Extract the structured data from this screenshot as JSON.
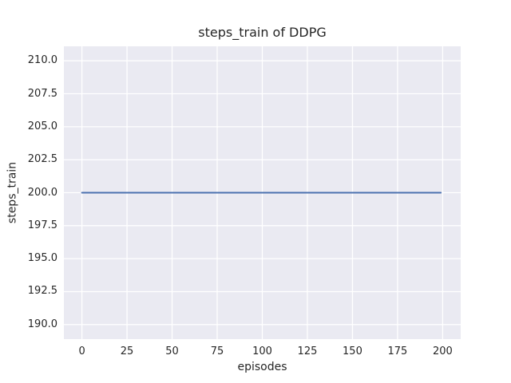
{
  "chart_data": {
    "type": "line",
    "title": "steps_train of DDPG",
    "xlabel": "episodes",
    "ylabel": "steps_train",
    "xlim": [
      -10,
      210
    ],
    "ylim": [
      188.9,
      211.1
    ],
    "x_ticks": [
      0,
      25,
      50,
      75,
      100,
      125,
      150,
      175,
      200
    ],
    "x_tick_labels": [
      "0",
      "25",
      "50",
      "75",
      "100",
      "125",
      "150",
      "175",
      "200"
    ],
    "y_ticks": [
      190.0,
      192.5,
      195.0,
      197.5,
      200.0,
      202.5,
      205.0,
      207.5,
      210.0
    ],
    "y_tick_labels": [
      "190.0",
      "192.5",
      "195.0",
      "197.5",
      "200.0",
      "202.5",
      "205.0",
      "207.5",
      "210.0"
    ],
    "grid": true,
    "legend": false,
    "series": [
      {
        "name": "steps_train",
        "color": "#4c72b0",
        "x": [
          0,
          199
        ],
        "y": [
          200,
          200
        ]
      }
    ]
  },
  "colors": {
    "figure_bg": "#ffffff",
    "plot_bg": "#eaeaf2",
    "grid": "#ffffff",
    "text": "#262626",
    "line": "#4c72b0"
  }
}
